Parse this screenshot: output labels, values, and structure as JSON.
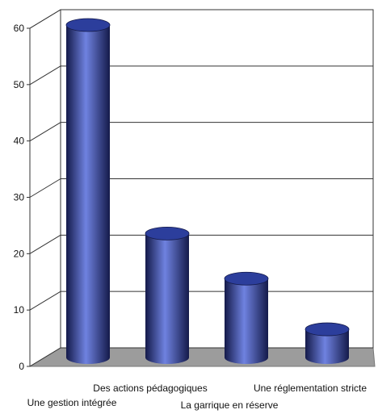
{
  "chart_data": {
    "type": "bar",
    "title": "",
    "xlabel": "",
    "ylabel": "",
    "categories": [
      "Une gestion intégrée",
      "Des actions pédagogiques",
      "La garrique en réserve",
      "Une réglementation stricte"
    ],
    "values": [
      59,
      22,
      14,
      5
    ],
    "ylim": [
      0,
      60
    ],
    "yticks": [
      0,
      10,
      20,
      30,
      40,
      50,
      60
    ],
    "grid": true,
    "legend": "none",
    "bar_style": "3d-cylinder",
    "colors": {
      "bar_dark": "#141a4a",
      "bar_mid": "#2c3e9c",
      "bar_light": "#6f82e0",
      "floor": "#9c9c9c",
      "gridline": "#333333"
    }
  }
}
